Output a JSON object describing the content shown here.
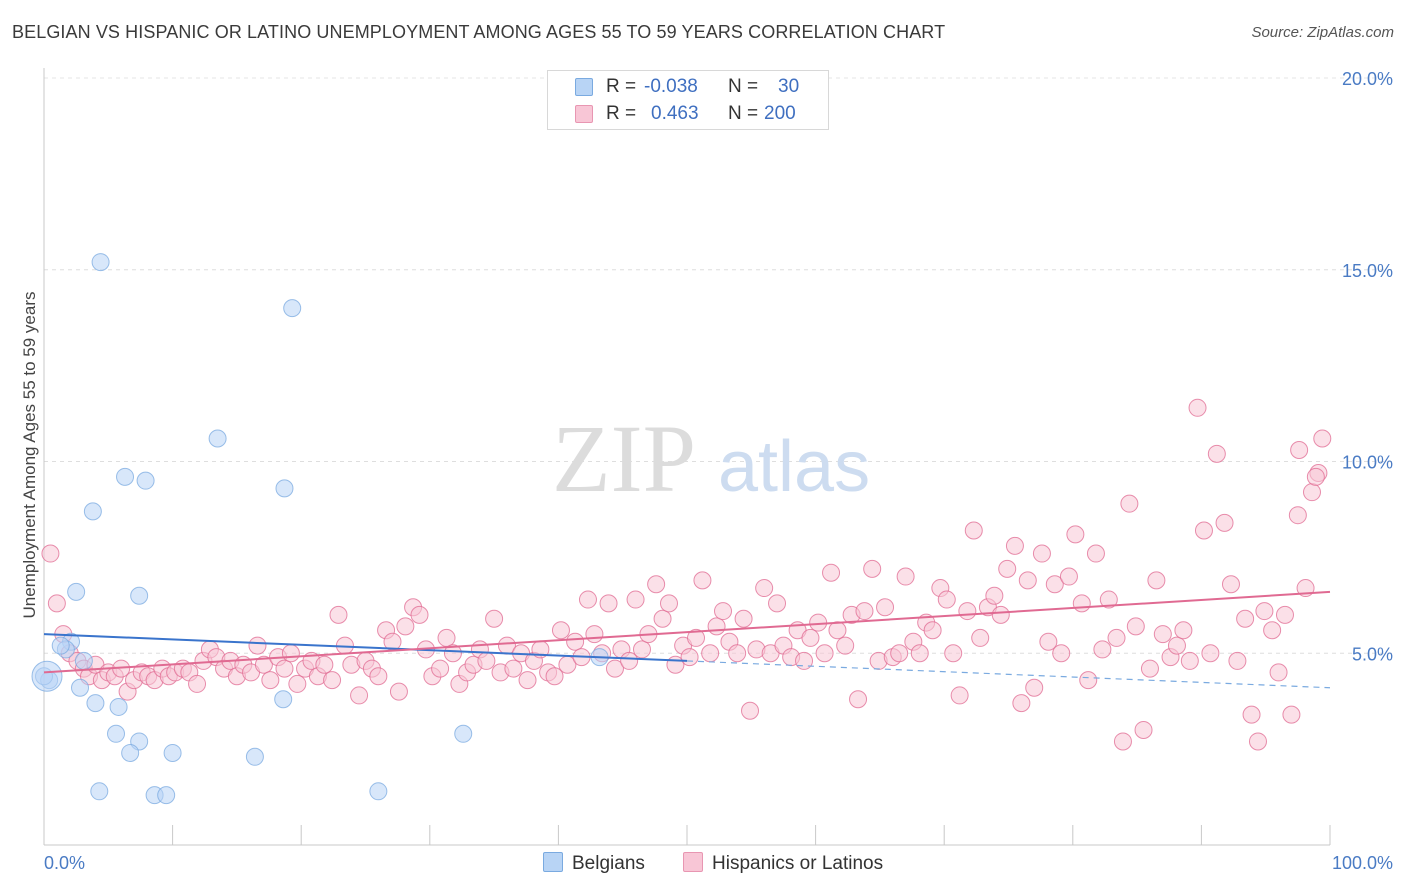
{
  "header": {
    "title": "BELGIAN VS HISPANIC OR LATINO UNEMPLOYMENT AMONG AGES 55 TO 59 YEARS CORRELATION CHART",
    "source": "Source: ZipAtlas.com"
  },
  "watermark": {
    "zip": "ZIP",
    "atlas": "atlas"
  },
  "legend": {
    "r_label": "R =",
    "n_label": "N =",
    "rows": [
      {
        "r": "-0.038",
        "n": "30",
        "fill": "#b8d4f5",
        "stroke": "#7aaae0"
      },
      {
        "r": "0.463",
        "n": "200",
        "fill": "#f8c6d6",
        "stroke": "#e896b2"
      }
    ]
  },
  "bottom_legend": [
    {
      "label": "Belgians",
      "fill": "#b8d4f5",
      "stroke": "#7aaae0"
    },
    {
      "label": "Hispanics or Latinos",
      "fill": "#f8c6d6",
      "stroke": "#e896b2"
    }
  ],
  "chart_data": {
    "type": "scatter",
    "xlabel": "",
    "ylabel": "Unemployment Among Ages 55 to 59 years",
    "xlim": [
      0,
      100
    ],
    "ylim": [
      0,
      20
    ],
    "x_tick_labels": [
      "0.0%",
      "100.0%"
    ],
    "y_ticks": [
      5,
      10,
      15,
      20
    ],
    "y_tick_labels": [
      "5.0%",
      "10.0%",
      "15.0%",
      "20.0%"
    ],
    "grid": "horizontal dashed",
    "legend_position": "top-center",
    "series": [
      {
        "name": "Belgians",
        "color": "#7aaae0",
        "fill": "#b8d4f5",
        "trend": {
          "x0": 0,
          "y0": 5.5,
          "x1": 50,
          "y1": 4.8,
          "dashed_to_x": 100,
          "dashed_to_y": 4.1
        },
        "points": [
          [
            4.4,
            15.2
          ],
          [
            19.3,
            14.0
          ],
          [
            13.5,
            10.6
          ],
          [
            6.3,
            9.6
          ],
          [
            7.9,
            9.5
          ],
          [
            18.7,
            9.3
          ],
          [
            3.8,
            8.7
          ],
          [
            2.5,
            6.6
          ],
          [
            7.4,
            6.5
          ],
          [
            2.1,
            5.3
          ],
          [
            1.7,
            5.1
          ],
          [
            1.3,
            5.2
          ],
          [
            3.1,
            4.8
          ],
          [
            0.4,
            4.3
          ],
          [
            0.0,
            4.4
          ],
          [
            2.8,
            4.1
          ],
          [
            4.0,
            3.7
          ],
          [
            5.8,
            3.6
          ],
          [
            18.6,
            3.8
          ],
          [
            5.6,
            2.9
          ],
          [
            7.4,
            2.7
          ],
          [
            6.7,
            2.4
          ],
          [
            10.0,
            2.4
          ],
          [
            16.4,
            2.3
          ],
          [
            4.3,
            1.4
          ],
          [
            8.6,
            1.3
          ],
          [
            9.5,
            1.3
          ],
          [
            26.0,
            1.4
          ],
          [
            32.6,
            2.9
          ],
          [
            43.2,
            4.9
          ]
        ]
      },
      {
        "name": "Hispanics or Latinos",
        "color": "#e06a92",
        "fill": "#f8c6d6",
        "trend": {
          "x0": 0,
          "y0": 4.5,
          "x1": 100,
          "y1": 6.6
        },
        "points": [
          [
            0.5,
            7.6
          ],
          [
            1.0,
            6.3
          ],
          [
            1.5,
            5.5
          ],
          [
            2.0,
            5.0
          ],
          [
            2.6,
            4.8
          ],
          [
            3.1,
            4.6
          ],
          [
            3.5,
            4.4
          ],
          [
            4.0,
            4.7
          ],
          [
            4.5,
            4.3
          ],
          [
            5.0,
            4.5
          ],
          [
            5.5,
            4.4
          ],
          [
            6.0,
            4.6
          ],
          [
            6.5,
            4.0
          ],
          [
            7.0,
            4.3
          ],
          [
            7.6,
            4.5
          ],
          [
            8.1,
            4.4
          ],
          [
            8.6,
            4.3
          ],
          [
            9.2,
            4.6
          ],
          [
            9.7,
            4.4
          ],
          [
            10.2,
            4.5
          ],
          [
            10.8,
            4.6
          ],
          [
            11.3,
            4.5
          ],
          [
            11.9,
            4.2
          ],
          [
            12.4,
            4.8
          ],
          [
            12.9,
            5.1
          ],
          [
            13.4,
            4.9
          ],
          [
            14.0,
            4.6
          ],
          [
            14.5,
            4.8
          ],
          [
            15.0,
            4.4
          ],
          [
            15.5,
            4.7
          ],
          [
            16.1,
            4.5
          ],
          [
            16.6,
            5.2
          ],
          [
            17.1,
            4.7
          ],
          [
            17.6,
            4.3
          ],
          [
            18.2,
            4.9
          ],
          [
            18.7,
            4.6
          ],
          [
            19.2,
            5.0
          ],
          [
            19.7,
            4.2
          ],
          [
            20.3,
            4.6
          ],
          [
            20.8,
            4.8
          ],
          [
            21.3,
            4.4
          ],
          [
            21.8,
            4.7
          ],
          [
            22.4,
            4.3
          ],
          [
            22.9,
            6.0
          ],
          [
            23.4,
            5.2
          ],
          [
            23.9,
            4.7
          ],
          [
            24.5,
            3.9
          ],
          [
            25.0,
            4.8
          ],
          [
            25.5,
            4.6
          ],
          [
            26.0,
            4.4
          ],
          [
            26.6,
            5.6
          ],
          [
            27.1,
            5.3
          ],
          [
            27.6,
            4.0
          ],
          [
            28.1,
            5.7
          ],
          [
            28.7,
            6.2
          ],
          [
            29.2,
            6.0
          ],
          [
            29.7,
            5.1
          ],
          [
            30.2,
            4.4
          ],
          [
            30.8,
            4.6
          ],
          [
            31.3,
            5.4
          ],
          [
            31.8,
            5.0
          ],
          [
            32.3,
            4.2
          ],
          [
            32.9,
            4.5
          ],
          [
            33.4,
            4.7
          ],
          [
            33.9,
            5.1
          ],
          [
            34.4,
            4.8
          ],
          [
            35.0,
            5.9
          ],
          [
            35.5,
            4.5
          ],
          [
            36.0,
            5.2
          ],
          [
            36.5,
            4.6
          ],
          [
            37.1,
            5.0
          ],
          [
            37.6,
            4.3
          ],
          [
            38.1,
            4.8
          ],
          [
            38.6,
            5.1
          ],
          [
            39.2,
            4.5
          ],
          [
            39.7,
            4.4
          ],
          [
            40.2,
            5.6
          ],
          [
            40.7,
            4.7
          ],
          [
            41.3,
            5.3
          ],
          [
            41.8,
            4.9
          ],
          [
            42.3,
            6.4
          ],
          [
            42.8,
            5.5
          ],
          [
            43.4,
            5.0
          ],
          [
            43.9,
            6.3
          ],
          [
            44.4,
            4.6
          ],
          [
            44.9,
            5.1
          ],
          [
            45.5,
            4.8
          ],
          [
            46.0,
            6.4
          ],
          [
            46.5,
            5.1
          ],
          [
            47.0,
            5.5
          ],
          [
            47.6,
            6.8
          ],
          [
            48.1,
            5.9
          ],
          [
            48.6,
            6.3
          ],
          [
            49.1,
            4.7
          ],
          [
            49.7,
            5.2
          ],
          [
            50.2,
            4.9
          ],
          [
            50.7,
            5.4
          ],
          [
            51.2,
            6.9
          ],
          [
            51.8,
            5.0
          ],
          [
            52.3,
            5.7
          ],
          [
            52.8,
            6.1
          ],
          [
            53.3,
            5.3
          ],
          [
            53.9,
            5.0
          ],
          [
            54.4,
            5.9
          ],
          [
            54.9,
            3.5
          ],
          [
            55.4,
            5.1
          ],
          [
            56.0,
            6.7
          ],
          [
            56.5,
            5.0
          ],
          [
            57.0,
            6.3
          ],
          [
            57.5,
            5.2
          ],
          [
            58.1,
            4.9
          ],
          [
            58.6,
            5.6
          ],
          [
            59.1,
            4.8
          ],
          [
            59.6,
            5.4
          ],
          [
            60.2,
            5.8
          ],
          [
            60.7,
            5.0
          ],
          [
            61.2,
            7.1
          ],
          [
            61.7,
            5.6
          ],
          [
            62.3,
            5.2
          ],
          [
            62.8,
            6.0
          ],
          [
            63.3,
            3.8
          ],
          [
            63.8,
            6.1
          ],
          [
            64.4,
            7.2
          ],
          [
            64.9,
            4.8
          ],
          [
            65.4,
            6.2
          ],
          [
            66.0,
            4.9
          ],
          [
            66.5,
            5.0
          ],
          [
            67.0,
            7.0
          ],
          [
            67.6,
            5.3
          ],
          [
            68.1,
            5.0
          ],
          [
            68.6,
            5.8
          ],
          [
            69.1,
            5.6
          ],
          [
            69.7,
            6.7
          ],
          [
            70.2,
            6.4
          ],
          [
            70.7,
            5.0
          ],
          [
            71.2,
            3.9
          ],
          [
            71.8,
            6.1
          ],
          [
            72.3,
            8.2
          ],
          [
            72.8,
            5.4
          ],
          [
            73.4,
            6.2
          ],
          [
            73.9,
            6.5
          ],
          [
            74.4,
            6.0
          ],
          [
            74.9,
            7.2
          ],
          [
            75.5,
            7.8
          ],
          [
            76.0,
            3.7
          ],
          [
            76.5,
            6.9
          ],
          [
            77.0,
            4.1
          ],
          [
            77.6,
            7.6
          ],
          [
            78.1,
            5.3
          ],
          [
            78.6,
            6.8
          ],
          [
            79.1,
            5.0
          ],
          [
            79.7,
            7.0
          ],
          [
            80.2,
            8.1
          ],
          [
            80.7,
            6.3
          ],
          [
            81.2,
            4.3
          ],
          [
            81.8,
            7.6
          ],
          [
            82.3,
            5.1
          ],
          [
            82.8,
            6.4
          ],
          [
            83.4,
            5.4
          ],
          [
            83.9,
            2.7
          ],
          [
            84.4,
            8.9
          ],
          [
            84.9,
            5.7
          ],
          [
            85.5,
            3.0
          ],
          [
            86.0,
            4.6
          ],
          [
            86.5,
            6.9
          ],
          [
            87.0,
            5.5
          ],
          [
            87.6,
            4.9
          ],
          [
            88.1,
            5.2
          ],
          [
            88.6,
            5.6
          ],
          [
            89.1,
            4.8
          ],
          [
            89.7,
            11.4
          ],
          [
            90.2,
            8.2
          ],
          [
            90.7,
            5.0
          ],
          [
            91.2,
            10.2
          ],
          [
            91.8,
            8.4
          ],
          [
            92.3,
            6.8
          ],
          [
            92.8,
            4.8
          ],
          [
            93.4,
            5.9
          ],
          [
            93.9,
            3.4
          ],
          [
            94.4,
            2.7
          ],
          [
            94.9,
            6.1
          ],
          [
            95.5,
            5.6
          ],
          [
            96.0,
            4.5
          ],
          [
            96.5,
            6.0
          ],
          [
            97.0,
            3.4
          ],
          [
            97.6,
            10.3
          ],
          [
            98.1,
            6.7
          ],
          [
            98.6,
            9.2
          ],
          [
            99.1,
            9.7
          ],
          [
            99.4,
            10.6
          ],
          [
            98.9,
            9.6
          ],
          [
            97.5,
            8.6
          ]
        ]
      }
    ]
  }
}
